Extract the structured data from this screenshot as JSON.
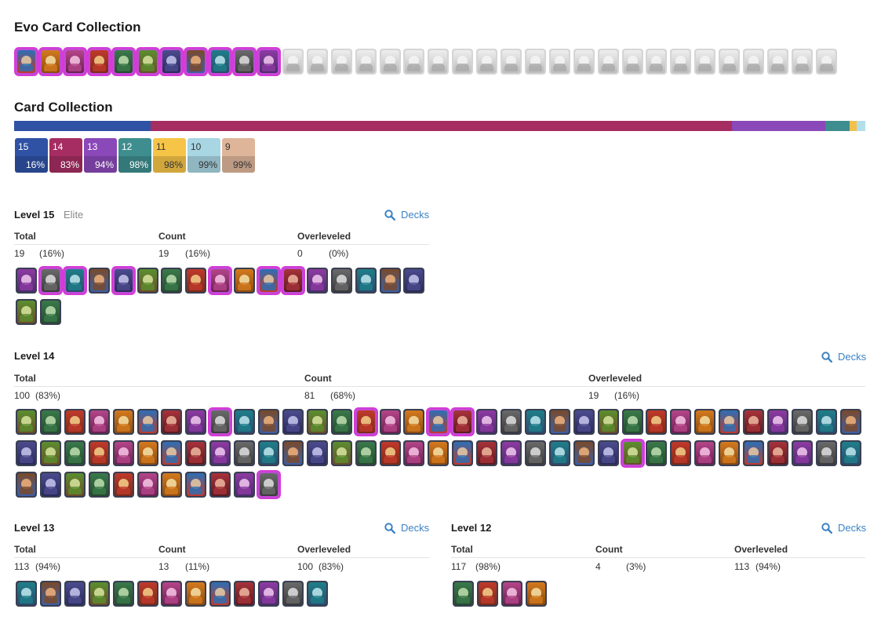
{
  "evo_section": {
    "title": "Evo Card Collection",
    "unlocked": 11,
    "total": 34
  },
  "collection": {
    "title": "Card Collection",
    "bar": [
      {
        "color": "#2f52a5",
        "fraction": 0.16
      },
      {
        "color": "#a52d62",
        "fraction": 0.683
      },
      {
        "color": "#8a48b8",
        "fraction": 0.11
      },
      {
        "color": "#3f8e8f",
        "fraction": 0.029
      },
      {
        "color": "#f2c14b",
        "fraction": 0.008
      },
      {
        "color": "#b3dfea",
        "fraction": 0.01
      }
    ],
    "badges": [
      {
        "level": "15",
        "pct": "16%",
        "color": "#2f52a5"
      },
      {
        "level": "14",
        "pct": "83%",
        "color": "#a52d62"
      },
      {
        "level": "13",
        "pct": "94%",
        "color": "#8a48b8"
      },
      {
        "level": "12",
        "pct": "98%",
        "color": "#3f8e8f"
      },
      {
        "level": "11",
        "pct": "98%",
        "color": "#f6c548",
        "dark": true
      },
      {
        "level": "10",
        "pct": "99%",
        "color": "#a9d6e3",
        "dark": true
      },
      {
        "level": "9",
        "pct": "99%",
        "color": "#dfb59a",
        "dark": true
      }
    ]
  },
  "decks_label": "Decks",
  "headers": {
    "total": "Total",
    "count": "Count",
    "overleveled": "Overleveled"
  },
  "level15": {
    "title": "Level 15",
    "subtitle": "Elite",
    "total": "19",
    "total_pct": "(16%)",
    "count": "19",
    "count_pct": "(16%)",
    "over": "0",
    "over_pct": "(0%)",
    "cards": 19
  },
  "level14": {
    "title": "Level 14",
    "total": "100",
    "total_pct": "(83%)",
    "count": "81",
    "count_pct": "(68%)",
    "over": "19",
    "over_pct": "(16%)",
    "cards": 81
  },
  "level13": {
    "title": "Level 13",
    "total": "113",
    "total_pct": "(94%)",
    "count": "13",
    "count_pct": "(11%)",
    "over": "100",
    "over_pct": "(83%)",
    "cards": 13
  },
  "level12": {
    "title": "Level 12",
    "total": "117",
    "total_pct": "(98%)",
    "count": "4",
    "count_pct": "(3%)",
    "over": "113",
    "over_pct": "(94%)",
    "cards": 4
  }
}
